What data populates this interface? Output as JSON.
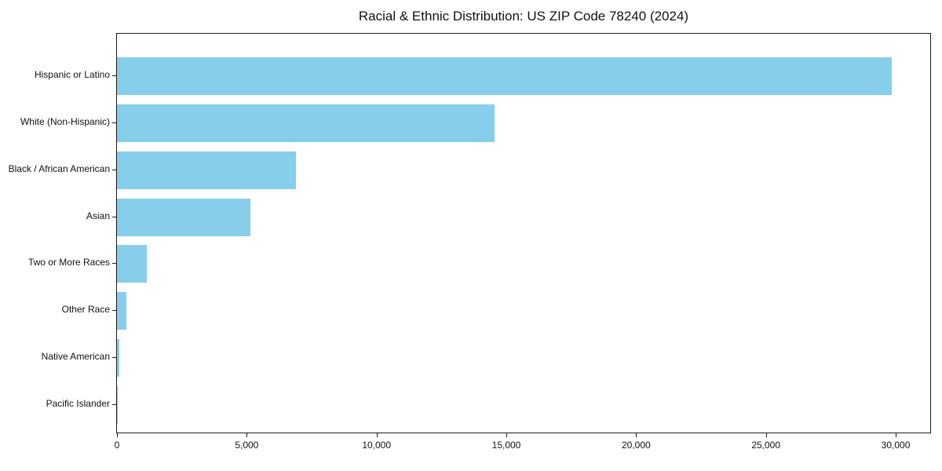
{
  "chart_data": {
    "type": "bar",
    "orientation": "horizontal",
    "title": "Racial & Ethnic Distribution: US ZIP Code 78240 (2024)",
    "categories": [
      "Hispanic or Latino",
      "White (Non-Hispanic)",
      "Black / African American",
      "Asian",
      "Two or More Races",
      "Other Race",
      "Native American",
      "Pacific Islander"
    ],
    "values": [
      29840,
      14560,
      6890,
      5140,
      1140,
      350,
      80,
      30
    ],
    "xlabel": "",
    "ylabel": "",
    "xlim": [
      0,
      31330
    ],
    "x_ticks": [
      0,
      5000,
      10000,
      15000,
      20000,
      25000,
      30000
    ],
    "x_tick_labels": [
      "0",
      "5,000",
      "10,000",
      "15,000",
      "20,000",
      "25,000",
      "30,000"
    ],
    "bar_color": "#87CEEB",
    "text_color": "#111111",
    "spine_color": "#1a1a1a",
    "background_color": "#ffffff",
    "grid": false,
    "legend_position": "none"
  }
}
